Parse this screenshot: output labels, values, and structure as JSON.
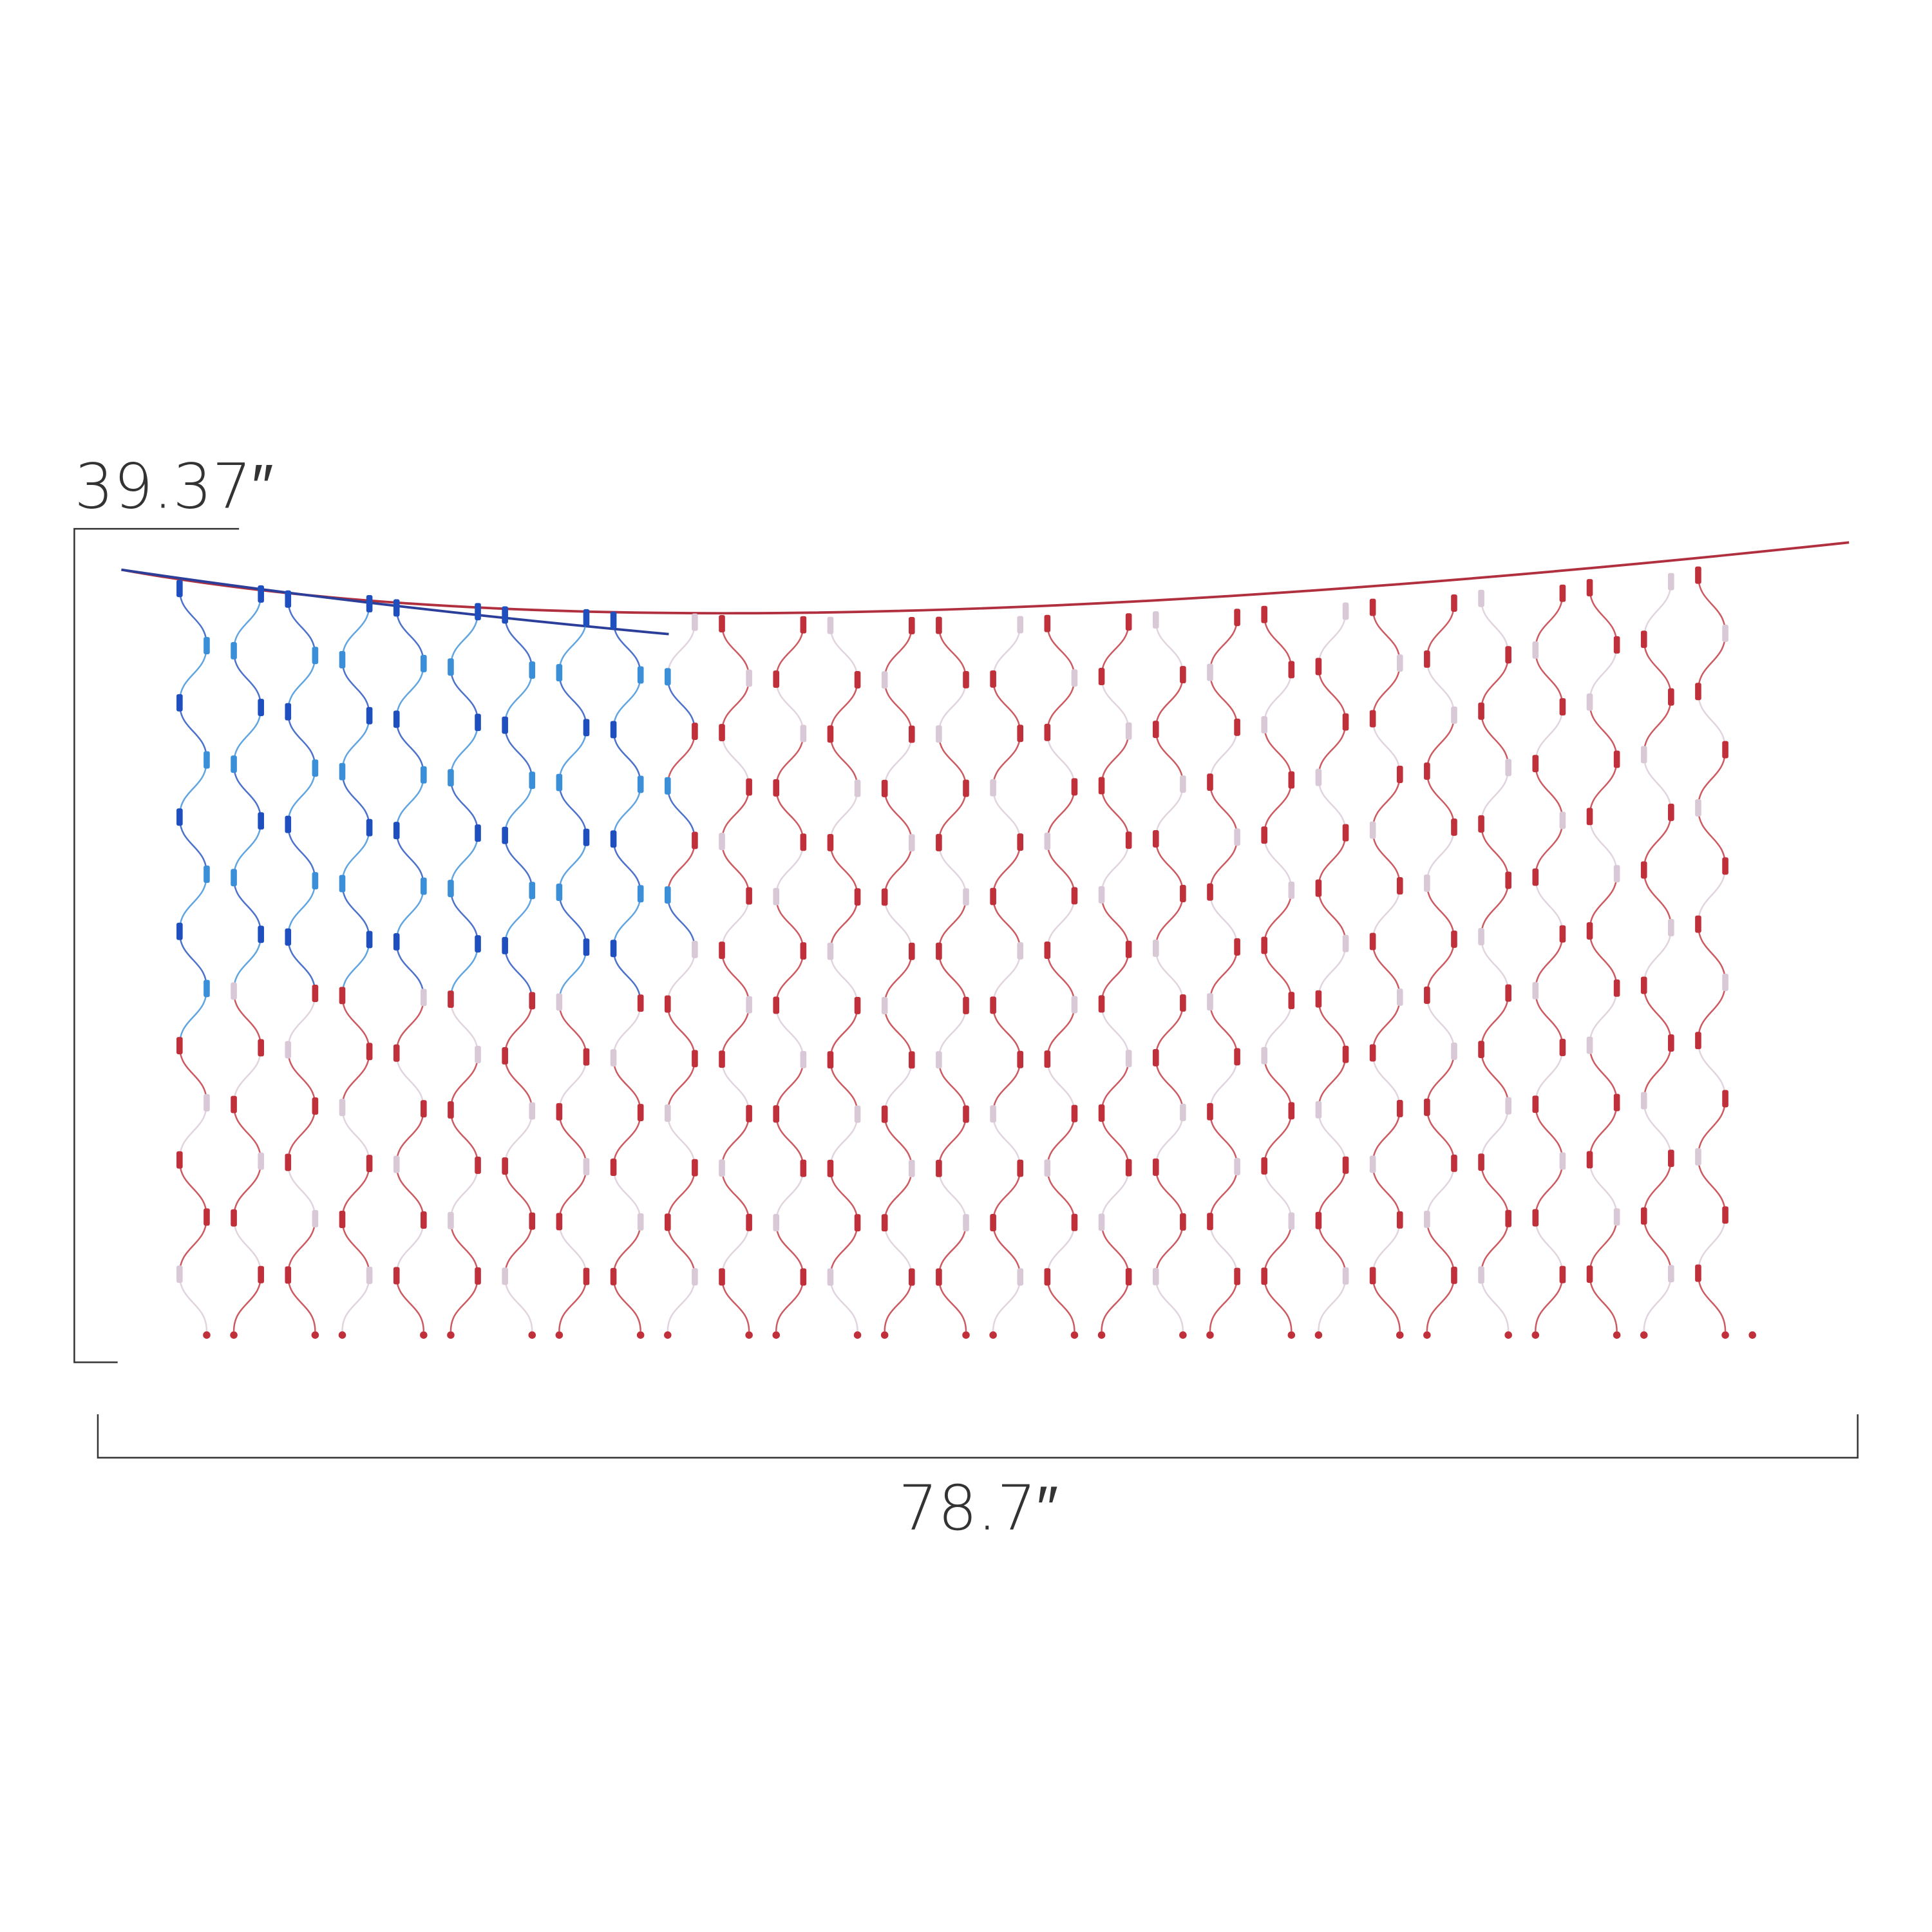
{
  "dimensions": {
    "height": "39.37″",
    "width": "78.7″"
  }
}
